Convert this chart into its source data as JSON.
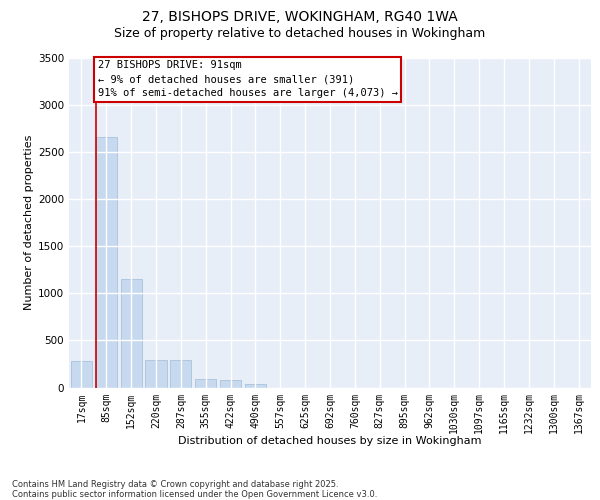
{
  "title_line1": "27, BISHOPS DRIVE, WOKINGHAM, RG40 1WA",
  "title_line2": "Size of property relative to detached houses in Wokingham",
  "xlabel": "Distribution of detached houses by size in Wokingham",
  "ylabel": "Number of detached properties",
  "categories": [
    "17sqm",
    "85sqm",
    "152sqm",
    "220sqm",
    "287sqm",
    "355sqm",
    "422sqm",
    "490sqm",
    "557sqm",
    "625sqm",
    "692sqm",
    "760sqm",
    "827sqm",
    "895sqm",
    "962sqm",
    "1030sqm",
    "1097sqm",
    "1165sqm",
    "1232sqm",
    "1300sqm",
    "1367sqm"
  ],
  "values": [
    280,
    2660,
    1150,
    290,
    290,
    90,
    75,
    35,
    0,
    0,
    0,
    0,
    0,
    0,
    0,
    0,
    0,
    0,
    0,
    0,
    0
  ],
  "bar_color": "#c6d9ee",
  "bar_edge_color": "#a0bcd8",
  "vline_color": "#cc0000",
  "vline_x_index": 0.6,
  "annotation_text": "27 BISHOPS DRIVE: 91sqm\n← 9% of detached houses are smaller (391)\n91% of semi-detached houses are larger (4,073) →",
  "ylim": [
    0,
    3500
  ],
  "yticks": [
    0,
    500,
    1000,
    1500,
    2000,
    2500,
    3000,
    3500
  ],
  "bg_color": "#e8eef8",
  "grid_color": "#ffffff",
  "footnote": "Contains HM Land Registry data © Crown copyright and database right 2025.\nContains public sector information licensed under the Open Government Licence v3.0.",
  "title1_fontsize": 10,
  "title2_fontsize": 9,
  "ylabel_fontsize": 8,
  "xlabel_fontsize": 8,
  "tick_fontsize": 7,
  "annot_fontsize": 7.5,
  "footnote_fontsize": 6
}
